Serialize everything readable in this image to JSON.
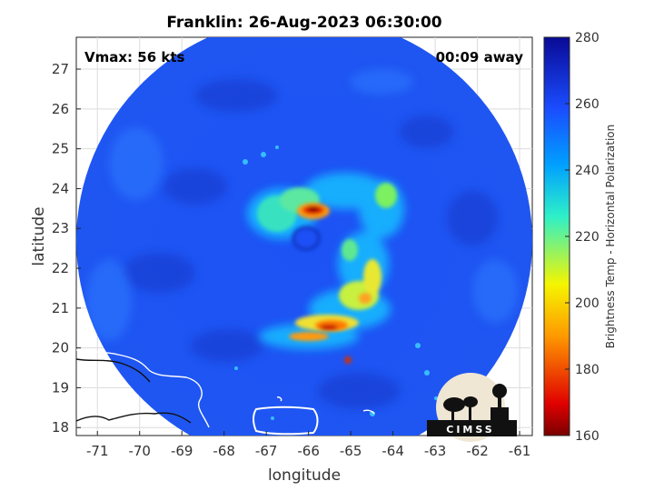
{
  "chart_data": {
    "type": "heatmap",
    "title": "Franklin: 26-Aug-2023 06:30:00",
    "xlabel": "longitude",
    "ylabel": "latitude",
    "xlim": [
      -71.5,
      -60.7
    ],
    "ylim": [
      17.8,
      27.8
    ],
    "xticks": [
      "-71",
      "-70",
      "-69",
      "-68",
      "-67",
      "-66",
      "-65",
      "-64",
      "-63",
      "-62",
      "-61"
    ],
    "yticks": [
      "18",
      "19",
      "20",
      "21",
      "22",
      "23",
      "24",
      "25",
      "26",
      "27"
    ],
    "grid": true,
    "annotations": {
      "vmax": "Vmax: 56 kts",
      "away": "00:09 away"
    },
    "colorbar": {
      "label": "Brightness Temp - Horizontal Polarization",
      "min": 160,
      "max": 280,
      "ticks": [
        "160",
        "180",
        "200",
        "220",
        "240",
        "260",
        "280"
      ],
      "colors": [
        "#7a0000",
        "#e00000",
        "#ff9900",
        "#f5f500",
        "#2ef0c8",
        "#00a0ff",
        "#1a4dff",
        "#0a0a96"
      ]
    },
    "swath": {
      "center_lon": -66.05,
      "center_lat": 22.8,
      "radius_deg": 5.3,
      "background_K": 262
    },
    "storm_center": {
      "lon": -66.0,
      "lat": 22.8
    },
    "features": [
      {
        "name": "eyewall cold band",
        "lon": -66.2,
        "lat": 23.35,
        "K": 185
      },
      {
        "name": "outer rainband",
        "lon": -65.3,
        "lat": 20.3,
        "K": 180
      },
      {
        "name": "northeast band",
        "lon": -64.0,
        "lat": 23.8,
        "K": 215
      },
      {
        "name": "warm core region",
        "lon": -67.0,
        "lat": 23.5,
        "K": 225
      }
    ]
  },
  "logo": {
    "text": "CIMSS"
  }
}
